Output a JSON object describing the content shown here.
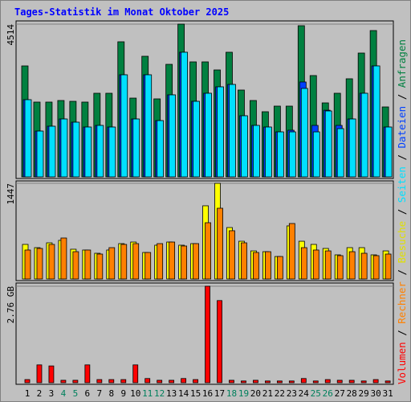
{
  "chart_data": {
    "type": "bar",
    "title": "Tages-Statistik im Monat Oktober 2025",
    "categories": [
      "1",
      "2",
      "3",
      "4",
      "5",
      "6",
      "7",
      "8",
      "9",
      "10",
      "11",
      "12",
      "13",
      "14",
      "15",
      "16",
      "17",
      "18",
      "19",
      "20",
      "21",
      "22",
      "23",
      "24",
      "25",
      "26",
      "27",
      "28",
      "29",
      "30",
      "31"
    ],
    "category_colors": [
      "#000000",
      "#000000",
      "#000000",
      "#00805c",
      "#00805c",
      "#000000",
      "#000000",
      "#000000",
      "#000000",
      "#000000",
      "#00805c",
      "#00805c",
      "#000000",
      "#000000",
      "#000000",
      "#000000",
      "#000000",
      "#00805c",
      "#00805c",
      "#000000",
      "#000000",
      "#000000",
      "#000000",
      "#000000",
      "#00805c",
      "#00805c",
      "#000000",
      "#000000",
      "#000000",
      "#000000",
      "#000000"
    ],
    "legend_separator": " / ",
    "panels": [
      {
        "ylim": [
          0,
          4514
        ],
        "yticks": [
          4514
        ],
        "series": [
          {
            "name": "Anfragen",
            "color": "#008040",
            "values": [
              3279,
              2210,
              2210,
              2257,
              2233,
              2210,
              2471,
              2471,
              3992,
              2328,
              3564,
              2305,
              3326,
              4514,
              3398,
              3398,
              3160,
              3683,
              2566,
              2257,
              1925,
              2091,
              2091,
              4467,
              2994,
              2186,
              2471,
              2899,
              3659,
              4324,
              2067
            ]
          },
          {
            "name": "Dateien",
            "color": "#0040ff",
            "values": [
              2281,
              1354,
              1497,
              1711,
              1616,
              1473,
              1521,
              1473,
              3017,
              1711,
              3017,
              1663,
              2424,
              3683,
              2233,
              2471,
              2661,
              2732,
              1806,
              1521,
              1473,
              1330,
              1378,
              2804,
              1521,
              1970,
              1521,
              1711,
              2471,
              3279,
              1473
            ]
          },
          {
            "name": "Seiten",
            "color": "#00e0ff",
            "values": [
              2281,
              1354,
              1497,
              1711,
              1616,
              1473,
              1521,
              1473,
              3017,
              1711,
              3017,
              1663,
              2424,
              3683,
              2233,
              2471,
              2661,
              2732,
              1806,
              1521,
              1473,
              1330,
              1330,
              2614,
              1330,
              1948,
              1426,
              1711,
              2471,
              3279,
              1473
            ]
          }
        ]
      },
      {
        "ylim": [
          0,
          1447
        ],
        "yticks": [
          1447
        ],
        "series": [
          {
            "name": "Besuche",
            "color": "#ffff00",
            "values": [
              523,
              474,
              547,
              584,
              450,
              438,
              389,
              438,
              535,
              559,
              401,
              511,
              559,
              511,
              535,
              1107,
              1447,
              778,
              571,
              425,
              413,
              340,
              803,
              571,
              523,
              462,
              365,
              474,
              474,
              365,
              425
            ]
          },
          {
            "name": "Rechner",
            "color": "#ff8000",
            "values": [
              438,
              462,
              523,
              620,
              413,
              438,
              377,
              474,
              523,
              535,
              401,
              535,
              559,
              499,
              535,
              851,
              1070,
              730,
              547,
              401,
              413,
              340,
              839,
              474,
              438,
              425,
              353,
              413,
              389,
              353,
              377
            ]
          }
        ]
      },
      {
        "ylim": [
          0,
          2.76
        ],
        "yticks": [
          {
            "value": 2.76,
            "label": "2.76 GB"
          }
        ],
        "series": [
          {
            "name": "Volumen",
            "color": "#ff0000",
            "values": [
              0.09,
              0.51,
              0.48,
              0.07,
              0.07,
              0.51,
              0.09,
              0.09,
              0.09,
              0.51,
              0.12,
              0.07,
              0.07,
              0.12,
              0.09,
              2.76,
              2.35,
              0.07,
              0.05,
              0.07,
              0.05,
              0.05,
              0.05,
              0.12,
              0.05,
              0.09,
              0.07,
              0.07,
              0.05,
              0.09,
              0.05
            ]
          }
        ]
      }
    ]
  }
}
